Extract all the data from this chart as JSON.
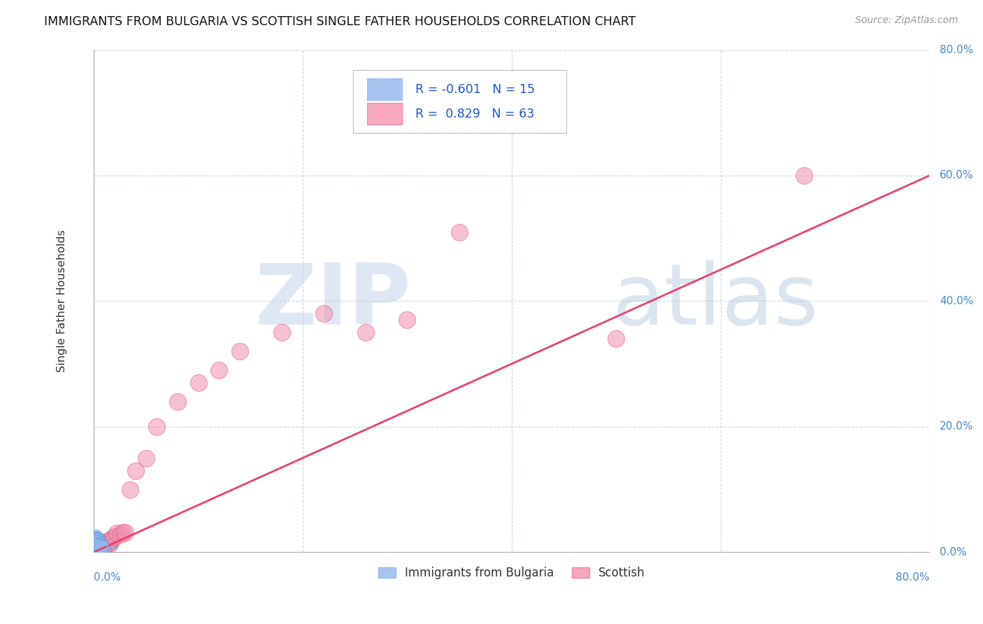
{
  "title": "IMMIGRANTS FROM BULGARIA VS SCOTTISH SINGLE FATHER HOUSEHOLDS CORRELATION CHART",
  "source": "Source: ZipAtlas.com",
  "ylabel": "Single Father Households",
  "y_tick_labels": [
    "0.0%",
    "20.0%",
    "40.0%",
    "60.0%",
    "80.0%"
  ],
  "x_label_bottom_left": "0.0%",
  "x_label_bottom_right": "80.0%",
  "legend_entries": [
    {
      "label": "Immigrants from Bulgaria",
      "color": "#a8c4f0",
      "R": "-0.601",
      "N": "15"
    },
    {
      "label": "Scottish",
      "color": "#f8a8bc",
      "R": "0.829",
      "N": "63"
    }
  ],
  "watermark_zip": "ZIP",
  "watermark_atlas": "atlas",
  "background_color": "#ffffff",
  "grid_color": "#c8d4e4",
  "xlim": [
    0.0,
    0.8
  ],
  "ylim": [
    0.0,
    0.8
  ],
  "blue_scatter_color": "#90b8f0",
  "blue_edge_color": "#6090d8",
  "blue_line_color": "#90b8f0",
  "pink_scatter_color": "#f090b0",
  "pink_edge_color": "#e06080",
  "pink_line_color": "#e84070",
  "pink_x": [
    0.001,
    0.001,
    0.001,
    0.002,
    0.002,
    0.002,
    0.002,
    0.003,
    0.003,
    0.003,
    0.003,
    0.004,
    0.004,
    0.004,
    0.004,
    0.005,
    0.005,
    0.005,
    0.005,
    0.005,
    0.006,
    0.006,
    0.006,
    0.006,
    0.007,
    0.007,
    0.007,
    0.008,
    0.008,
    0.008,
    0.009,
    0.009,
    0.01,
    0.01,
    0.011,
    0.012,
    0.013,
    0.014,
    0.015,
    0.015,
    0.016,
    0.017,
    0.018,
    0.02,
    0.022,
    0.025,
    0.028,
    0.03,
    0.035,
    0.04,
    0.05,
    0.06,
    0.08,
    0.1,
    0.12,
    0.14,
    0.18,
    0.22,
    0.26,
    0.3,
    0.35,
    0.5,
    0.68
  ],
  "pink_y": [
    0.005,
    0.008,
    0.012,
    0.005,
    0.008,
    0.01,
    0.015,
    0.006,
    0.008,
    0.012,
    0.015,
    0.007,
    0.01,
    0.013,
    0.016,
    0.005,
    0.008,
    0.01,
    0.012,
    0.016,
    0.006,
    0.009,
    0.012,
    0.015,
    0.008,
    0.01,
    0.014,
    0.009,
    0.012,
    0.016,
    0.01,
    0.014,
    0.01,
    0.015,
    0.012,
    0.014,
    0.016,
    0.018,
    0.014,
    0.018,
    0.016,
    0.02,
    0.022,
    0.025,
    0.03,
    0.028,
    0.032,
    0.032,
    0.1,
    0.13,
    0.15,
    0.2,
    0.24,
    0.27,
    0.29,
    0.32,
    0.35,
    0.38,
    0.35,
    0.37,
    0.51,
    0.34,
    0.6
  ],
  "blue_x": [
    0.0005,
    0.001,
    0.001,
    0.001,
    0.002,
    0.002,
    0.002,
    0.003,
    0.003,
    0.003,
    0.004,
    0.004,
    0.005,
    0.006,
    0.008
  ],
  "blue_y": [
    0.018,
    0.015,
    0.02,
    0.022,
    0.013,
    0.016,
    0.019,
    0.012,
    0.015,
    0.018,
    0.01,
    0.014,
    0.009,
    0.008,
    0.006
  ]
}
